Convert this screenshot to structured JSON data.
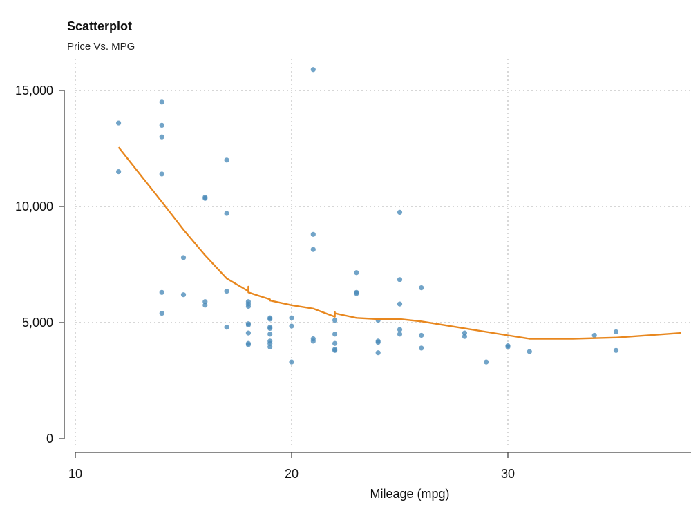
{
  "chart_data": {
    "type": "scatter",
    "title": "Scatterplot",
    "subtitle": "Price Vs. MPG",
    "xlabel": "Mileage (mpg)",
    "ylabel": "",
    "xlim": [
      10,
      38
    ],
    "ylim": [
      0,
      16000
    ],
    "x_ticks": [
      10,
      20,
      30
    ],
    "x_tick_labels": [
      "10",
      "20",
      "30"
    ],
    "y_ticks": [
      0,
      5000,
      10000,
      15000
    ],
    "y_tick_labels": [
      "0",
      "5,000",
      "10,000",
      "15,000"
    ],
    "grid": true,
    "point_color": "#4a8ab8",
    "fit_color": "#e8871e",
    "points": [
      {
        "x": 12,
        "y": 13600
      },
      {
        "x": 12,
        "y": 11500
      },
      {
        "x": 14,
        "y": 14500
      },
      {
        "x": 14,
        "y": 13500
      },
      {
        "x": 14,
        "y": 13000
      },
      {
        "x": 14,
        "y": 11400
      },
      {
        "x": 14,
        "y": 6300
      },
      {
        "x": 14,
        "y": 5400
      },
      {
        "x": 15,
        "y": 7800
      },
      {
        "x": 15,
        "y": 6200
      },
      {
        "x": 16,
        "y": 10400
      },
      {
        "x": 16,
        "y": 10350
      },
      {
        "x": 16,
        "y": 5900
      },
      {
        "x": 16,
        "y": 5750
      },
      {
        "x": 17,
        "y": 12000
      },
      {
        "x": 17,
        "y": 9700
      },
      {
        "x": 17,
        "y": 6350
      },
      {
        "x": 17,
        "y": 4800
      },
      {
        "x": 18,
        "y": 5900
      },
      {
        "x": 18,
        "y": 5800
      },
      {
        "x": 18,
        "y": 5700
      },
      {
        "x": 18,
        "y": 4950
      },
      {
        "x": 18,
        "y": 4900
      },
      {
        "x": 18,
        "y": 4550
      },
      {
        "x": 18,
        "y": 4100
      },
      {
        "x": 18,
        "y": 4050
      },
      {
        "x": 19,
        "y": 5200
      },
      {
        "x": 19,
        "y": 5150
      },
      {
        "x": 19,
        "y": 4800
      },
      {
        "x": 19,
        "y": 4750
      },
      {
        "x": 19,
        "y": 4500
      },
      {
        "x": 19,
        "y": 4200
      },
      {
        "x": 19,
        "y": 4100
      },
      {
        "x": 19,
        "y": 3950
      },
      {
        "x": 20,
        "y": 5200
      },
      {
        "x": 20,
        "y": 4850
      },
      {
        "x": 20,
        "y": 3300
      },
      {
        "x": 21,
        "y": 15900
      },
      {
        "x": 21,
        "y": 8800
      },
      {
        "x": 21,
        "y": 8150
      },
      {
        "x": 21,
        "y": 4300
      },
      {
        "x": 21,
        "y": 4200
      },
      {
        "x": 22,
        "y": 5100
      },
      {
        "x": 22,
        "y": 4500
      },
      {
        "x": 22,
        "y": 4100
      },
      {
        "x": 22,
        "y": 3850
      },
      {
        "x": 22,
        "y": 3800
      },
      {
        "x": 23,
        "y": 7150
      },
      {
        "x": 23,
        "y": 6300
      },
      {
        "x": 23,
        "y": 6250
      },
      {
        "x": 24,
        "y": 5100
      },
      {
        "x": 24,
        "y": 4200
      },
      {
        "x": 24,
        "y": 4150
      },
      {
        "x": 24,
        "y": 3700
      },
      {
        "x": 25,
        "y": 9750
      },
      {
        "x": 25,
        "y": 6850
      },
      {
        "x": 25,
        "y": 5800
      },
      {
        "x": 25,
        "y": 4700
      },
      {
        "x": 25,
        "y": 4500
      },
      {
        "x": 26,
        "y": 6500
      },
      {
        "x": 26,
        "y": 4450
      },
      {
        "x": 26,
        "y": 3900
      },
      {
        "x": 28,
        "y": 4550
      },
      {
        "x": 28,
        "y": 4400
      },
      {
        "x": 29,
        "y": 3300
      },
      {
        "x": 30,
        "y": 4000
      },
      {
        "x": 30,
        "y": 3950
      },
      {
        "x": 31,
        "y": 3750
      },
      {
        "x": 34,
        "y": 4450
      },
      {
        "x": 35,
        "y": 4600
      },
      {
        "x": 35,
        "y": 3800
      }
    ],
    "fit_line": [
      {
        "x": 12,
        "y": 12550
      },
      {
        "x": 14,
        "y": 10200
      },
      {
        "x": 15,
        "y": 9000
      },
      {
        "x": 16,
        "y": 7900
      },
      {
        "x": 17,
        "y": 6900
      },
      {
        "x": 18,
        "y": 6350
      },
      {
        "x": 18,
        "y": 6550
      },
      {
        "x": 18,
        "y": 6300
      },
      {
        "x": 19,
        "y": 6000
      },
      {
        "x": 19,
        "y": 5950
      },
      {
        "x": 20,
        "y": 5750
      },
      {
        "x": 21,
        "y": 5600
      },
      {
        "x": 22,
        "y": 5250
      },
      {
        "x": 22,
        "y": 5450
      },
      {
        "x": 22,
        "y": 5400
      },
      {
        "x": 23,
        "y": 5200
      },
      {
        "x": 24,
        "y": 5150
      },
      {
        "x": 25,
        "y": 5150
      },
      {
        "x": 26,
        "y": 5050
      },
      {
        "x": 28,
        "y": 4750
      },
      {
        "x": 30,
        "y": 4450
      },
      {
        "x": 31,
        "y": 4300
      },
      {
        "x": 33,
        "y": 4300
      },
      {
        "x": 35,
        "y": 4350
      },
      {
        "x": 38,
        "y": 4550
      }
    ]
  }
}
